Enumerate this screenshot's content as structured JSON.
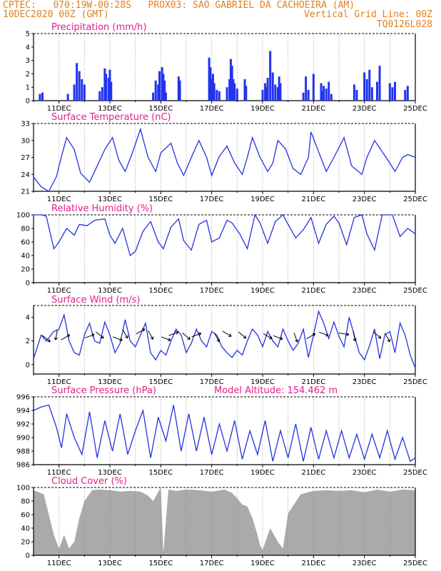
{
  "header": {
    "left_line1": "CPTEC:   070:19W-00:28S   PROX03: SAO GABRIEL DA CACHOEIRA (AM)",
    "left_line2": "10DEC2020 00Z (GMT)",
    "right_line2": "Vertical Grid Line: 00Z",
    "right_line3": "TQ0126L028"
  },
  "colors": {
    "line": "#2233dd",
    "bar": "#2233ee",
    "cloud": "#aaaaaa",
    "title": "#e0208a",
    "header": "#e08020",
    "grid": "#888888"
  },
  "x_axis_labels": [
    "11DEC",
    "13DEC",
    "15DEC",
    "17DEC",
    "19DEC",
    "21DEC",
    "23DEC",
    "25DEC"
  ],
  "chart_data": [
    {
      "type": "bar",
      "id": "precip",
      "title": "Precipitation (mm/h)",
      "ylim": [
        0,
        5
      ],
      "yticks": [
        0,
        1,
        2,
        3,
        4,
        5
      ],
      "x_range_days": [
        0,
        15
      ],
      "x": [
        0.25,
        0.35,
        1.35,
        1.6,
        1.7,
        1.8,
        1.9,
        2.0,
        2.6,
        2.7,
        2.8,
        2.85,
        2.95,
        3.0,
        3.05,
        4.7,
        4.8,
        4.9,
        4.95,
        5.05,
        5.1,
        5.15,
        5.2,
        5.7,
        5.75,
        6.9,
        6.95,
        7.0,
        7.05,
        7.1,
        7.2,
        7.3,
        7.6,
        7.7,
        7.75,
        7.8,
        7.85,
        7.9,
        8.0,
        8.3,
        8.35,
        9.0,
        9.1,
        9.15,
        9.2,
        9.3,
        9.4,
        9.5,
        9.6,
        9.65,
        9.7,
        10.6,
        10.7,
        10.8,
        11.0,
        11.3,
        11.35,
        11.4,
        11.5,
        11.6,
        11.7,
        12.6,
        12.7,
        13.0,
        13.1,
        13.2,
        13.3,
        13.5,
        13.6,
        14.0,
        14.1,
        14.2,
        14.6,
        14.7
      ],
      "values": [
        0.5,
        0.6,
        0.5,
        1.2,
        2.8,
        2.2,
        1.6,
        1.2,
        0.7,
        1.0,
        2.4,
        2.0,
        1.7,
        2.3,
        1.4,
        0.6,
        1.5,
        1.2,
        2.2,
        2.5,
        2.0,
        1.5,
        0.6,
        1.8,
        1.5,
        3.2,
        2.5,
        1.6,
        2.0,
        1.3,
        0.8,
        0.7,
        1.0,
        1.6,
        3.1,
        2.6,
        1.6,
        1.3,
        0.9,
        1.6,
        1.1,
        0.8,
        1.3,
        1.0,
        1.7,
        3.7,
        2.1,
        1.2,
        1.0,
        1.8,
        1.3,
        0.6,
        1.8,
        0.8,
        2.0,
        1.3,
        0.7,
        1.1,
        0.9,
        1.4,
        0.5,
        1.2,
        0.8,
        2.1,
        1.6,
        2.3,
        1.0,
        1.4,
        2.6,
        1.3,
        1.0,
        1.4,
        0.8,
        1.1
      ]
    },
    {
      "type": "line",
      "id": "temp",
      "title": "Surface Temperature (nC)",
      "ylim": [
        21,
        33
      ],
      "yticks": [
        21,
        24,
        27,
        30,
        33
      ],
      "x": [
        0,
        0.3,
        0.6,
        0.9,
        1.1,
        1.3,
        1.6,
        1.85,
        2.2,
        2.5,
        2.8,
        3.1,
        3.35,
        3.6,
        3.9,
        4.2,
        4.5,
        4.8,
        5.0,
        5.4,
        5.65,
        5.9,
        6.2,
        6.5,
        6.8,
        7.0,
        7.3,
        7.6,
        7.9,
        8.2,
        8.4,
        8.6,
        8.9,
        9.2,
        9.4,
        9.6,
        9.9,
        10.2,
        10.5,
        10.8,
        10.9,
        11.2,
        11.5,
        11.8,
        12.2,
        12.5,
        12.9,
        13.1,
        13.4,
        13.7,
        14.0,
        14.2,
        14.5,
        14.7,
        15.0
      ],
      "values": [
        23.5,
        21.8,
        21.0,
        23.6,
        27.2,
        30.5,
        28.4,
        24.2,
        22.6,
        25.5,
        28.4,
        30.5,
        26.5,
        24.5,
        28.0,
        32.0,
        27.0,
        24.5,
        27.8,
        29.5,
        26.0,
        23.8,
        27.0,
        30.0,
        27.0,
        23.8,
        27.2,
        29.0,
        26.0,
        24.0,
        27.0,
        30.5,
        27.0,
        24.5,
        26.0,
        30.0,
        28.5,
        25.0,
        24.0,
        27.0,
        31.5,
        28.0,
        24.5,
        27.0,
        30.5,
        25.5,
        24.0,
        27.0,
        30.0,
        28.0,
        26.0,
        24.5,
        27.0,
        27.5,
        27.0
      ]
    },
    {
      "type": "line",
      "id": "rh",
      "title": "Relative Humidity (%)",
      "ylim": [
        0,
        100
      ],
      "yticks": [
        0,
        20,
        40,
        60,
        80,
        100
      ],
      "x": [
        0,
        0.3,
        0.5,
        0.8,
        1.0,
        1.3,
        1.6,
        1.8,
        2.1,
        2.4,
        2.8,
        3.0,
        3.2,
        3.5,
        3.8,
        4.0,
        4.3,
        4.6,
        4.9,
        5.1,
        5.4,
        5.7,
        5.9,
        6.2,
        6.5,
        6.8,
        7.0,
        7.3,
        7.6,
        7.8,
        8.1,
        8.4,
        8.7,
        8.9,
        9.2,
        9.5,
        9.8,
        10.0,
        10.3,
        10.6,
        10.9,
        11.2,
        11.5,
        11.8,
        12.0,
        12.3,
        12.6,
        12.9,
        13.1,
        13.4,
        13.7,
        14.1,
        14.4,
        14.7,
        15.0
      ],
      "values": [
        100,
        100,
        98,
        50,
        60,
        80,
        70,
        86,
        84,
        92,
        94,
        70,
        58,
        80,
        40,
        46,
        76,
        90,
        60,
        50,
        82,
        94,
        62,
        48,
        86,
        92,
        60,
        66,
        92,
        88,
        72,
        50,
        100,
        88,
        58,
        90,
        100,
        86,
        66,
        78,
        96,
        58,
        86,
        98,
        88,
        56,
        96,
        100,
        72,
        48,
        100,
        100,
        68,
        80,
        72
      ]
    },
    {
      "type": "line",
      "id": "wind",
      "title": "Surface Wind (m/s)",
      "ylim": [
        -0.8,
        5
      ],
      "yticks": [
        0,
        2,
        4
      ],
      "x": [
        0,
        0.3,
        0.5,
        0.8,
        1.0,
        1.2,
        1.4,
        1.6,
        1.8,
        2.0,
        2.2,
        2.4,
        2.6,
        2.8,
        3.0,
        3.2,
        3.4,
        3.6,
        3.8,
        4.0,
        4.2,
        4.4,
        4.6,
        4.8,
        5.0,
        5.2,
        5.4,
        5.6,
        5.8,
        6.0,
        6.2,
        6.4,
        6.6,
        6.8,
        7.0,
        7.2,
        7.4,
        7.6,
        7.8,
        8.0,
        8.2,
        8.4,
        8.6,
        8.8,
        9.0,
        9.2,
        9.4,
        9.6,
        9.8,
        10.0,
        10.2,
        10.4,
        10.6,
        10.8,
        11.0,
        11.2,
        11.4,
        11.6,
        11.8,
        12.0,
        12.2,
        12.4,
        12.6,
        12.8,
        13.0,
        13.2,
        13.4,
        13.6,
        13.8,
        14.0,
        14.2,
        14.4,
        14.6,
        14.8,
        15.0
      ],
      "values": [
        0.5,
        2.5,
        2.0,
        2.8,
        3.0,
        4.2,
        2.0,
        1.0,
        0.8,
        2.5,
        3.5,
        2.0,
        1.8,
        3.6,
        2.5,
        1.0,
        1.8,
        3.8,
        2.0,
        1.5,
        2.5,
        3.5,
        1.0,
        0.4,
        1.2,
        0.8,
        2.0,
        3.0,
        2.5,
        1.0,
        1.8,
        3.0,
        2.0,
        1.5,
        2.8,
        2.5,
        1.5,
        1.0,
        0.6,
        1.2,
        0.8,
        2.0,
        3.0,
        2.5,
        1.5,
        2.8,
        2.0,
        1.5,
        3.0,
        2.0,
        1.2,
        1.8,
        3.0,
        0.6,
        2.5,
        4.5,
        3.5,
        2.2,
        3.6,
        2.4,
        1.5,
        4.0,
        2.5,
        1.0,
        0.4,
        1.6,
        3.0,
        0.5,
        2.5,
        2.8,
        1.0,
        3.5,
        2.5,
        0.8,
        -0.3
      ]
    },
    {
      "type": "line",
      "id": "pres",
      "title": "Surface Pressure (hPa)",
      "annotation": "Model Altitude: 154.462 m",
      "ylim": [
        986,
        996
      ],
      "yticks": [
        986,
        988,
        990,
        992,
        994,
        996
      ],
      "x": [
        0,
        0.3,
        0.6,
        0.9,
        1.1,
        1.3,
        1.6,
        1.9,
        2.2,
        2.5,
        2.8,
        3.1,
        3.4,
        3.7,
        4.0,
        4.3,
        4.6,
        4.9,
        5.2,
        5.5,
        5.8,
        6.1,
        6.4,
        6.7,
        7.0,
        7.3,
        7.6,
        7.9,
        8.2,
        8.5,
        8.8,
        9.1,
        9.4,
        9.7,
        10.0,
        10.3,
        10.6,
        10.9,
        11.2,
        11.5,
        11.8,
        12.1,
        12.4,
        12.7,
        13.0,
        13.3,
        13.6,
        13.9,
        14.2,
        14.5,
        14.8,
        15.0
      ],
      "values": [
        994,
        994.5,
        994.8,
        991.5,
        988.5,
        993.5,
        990,
        987.5,
        993.8,
        987.0,
        992.5,
        988.0,
        993.5,
        987.5,
        991.0,
        994.0,
        987.0,
        993.0,
        989.5,
        994.8,
        988.0,
        993.5,
        988.0,
        993.0,
        987.5,
        992.0,
        988.0,
        992.5,
        986.8,
        991.0,
        987.5,
        992.5,
        986.5,
        991.0,
        987.0,
        992.0,
        986.5,
        991.5,
        986.8,
        991.0,
        987.0,
        991.0,
        987.0,
        990.5,
        986.8,
        990.5,
        987.0,
        991.0,
        986.8,
        990.0,
        986.5,
        987.0
      ]
    },
    {
      "type": "area",
      "id": "cloud",
      "title": "Cloud Cover (%)",
      "ylim": [
        0,
        100
      ],
      "yticks": [
        0,
        20,
        40,
        60,
        80,
        100
      ],
      "x": [
        0,
        0.4,
        0.6,
        0.8,
        1.0,
        1.2,
        1.4,
        1.6,
        1.8,
        2.0,
        2.3,
        2.6,
        3.0,
        3.4,
        3.8,
        4.2,
        4.5,
        4.7,
        5.0,
        5.1,
        5.3,
        5.6,
        6.0,
        6.5,
        7.0,
        7.5,
        7.8,
        8.0,
        8.2,
        8.4,
        8.6,
        8.8,
        8.9,
        9.0,
        9.3,
        9.6,
        9.8,
        10.0,
        10.5,
        11.0,
        11.5,
        12.0,
        12.5,
        13.0,
        13.5,
        14.0,
        14.5,
        15.0
      ],
      "values": [
        96,
        90,
        60,
        30,
        10,
        30,
        10,
        20,
        55,
        80,
        96,
        97,
        96,
        94,
        95,
        94,
        88,
        80,
        100,
        3,
        97,
        95,
        97,
        96,
        94,
        97,
        92,
        84,
        75,
        72,
        55,
        30,
        15,
        8,
        40,
        20,
        10,
        62,
        90,
        95,
        96,
        95,
        96,
        93,
        97,
        94,
        97,
        96
      ]
    }
  ]
}
